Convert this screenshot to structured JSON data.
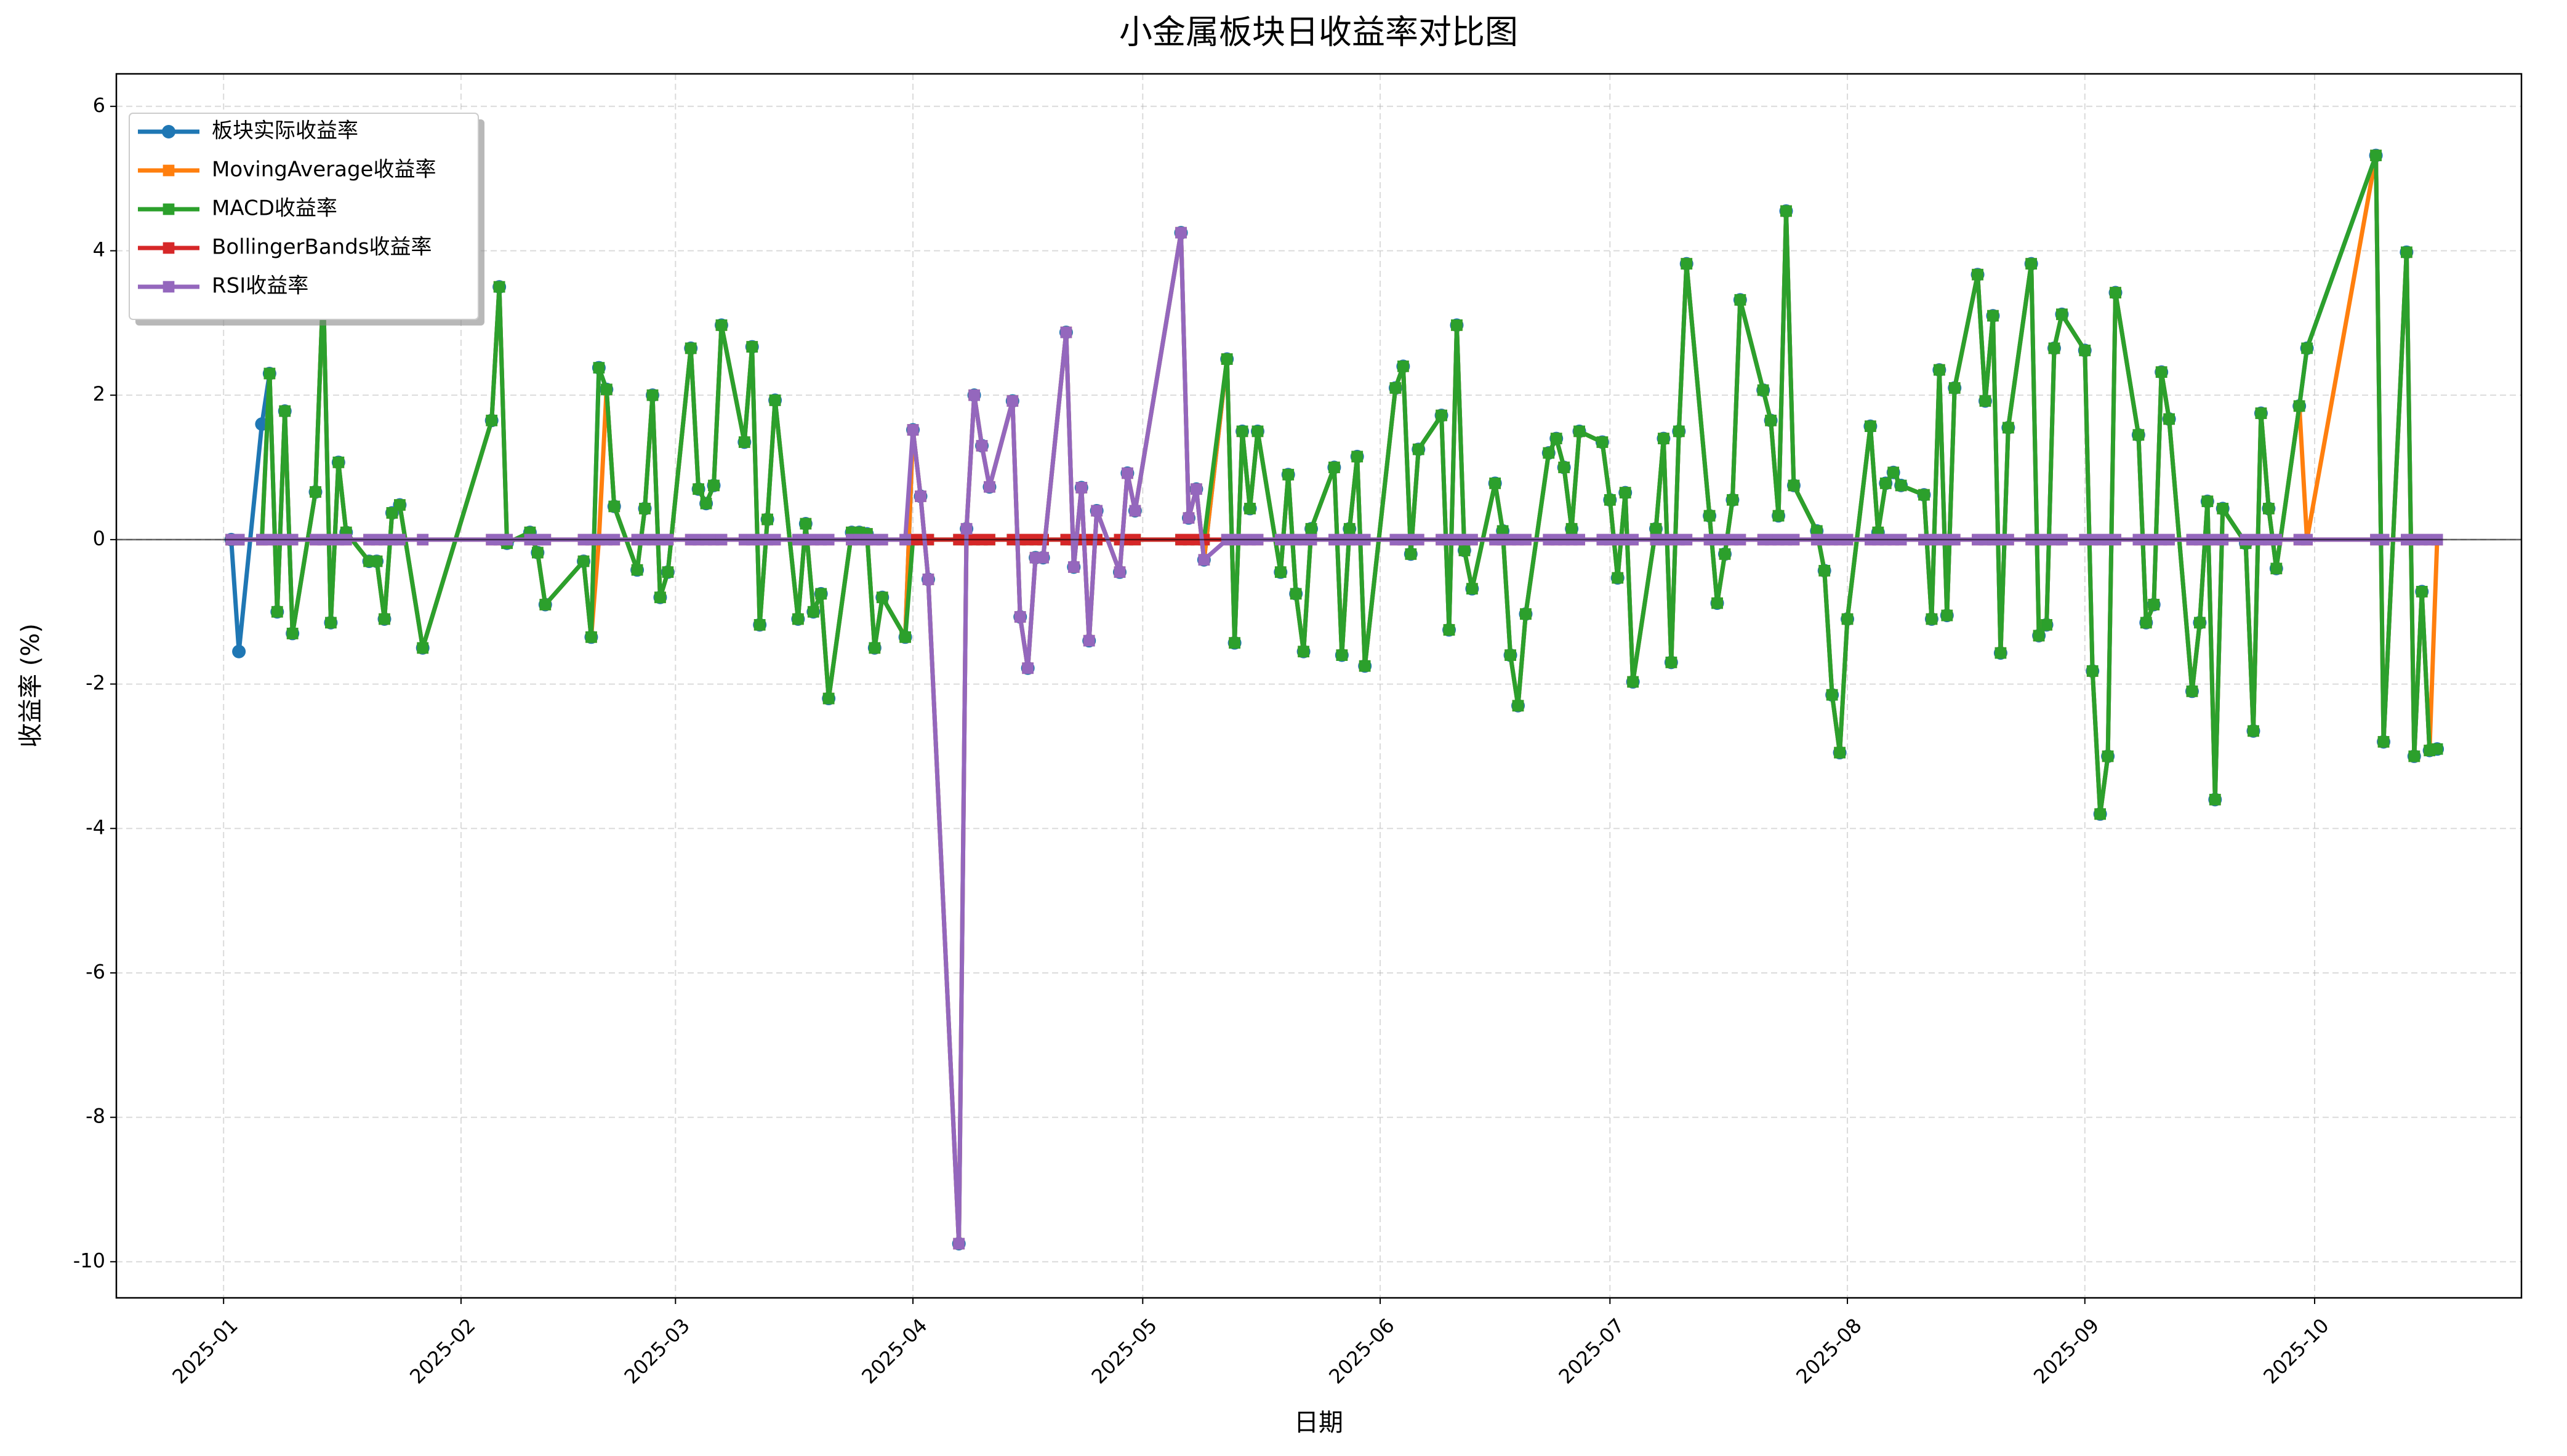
{
  "chart_data": {
    "type": "line",
    "title": "小金属板块日收益率对比图",
    "xlabel": "日期",
    "ylabel": "收益率 (%)",
    "legend": "upper left",
    "grid": true,
    "xlim": [
      "2024-12-18",
      "2025-10-28"
    ],
    "ylim": [
      -10.5,
      6.45
    ],
    "yticks": [
      -10,
      -8,
      -6,
      -4,
      -2,
      0,
      2,
      4,
      6
    ],
    "xticks": [
      {
        "value": "2025-01-01",
        "label": "2025-01"
      },
      {
        "value": "2025-02-01",
        "label": "2025-02"
      },
      {
        "value": "2025-03-01",
        "label": "2025-03"
      },
      {
        "value": "2025-04-01",
        "label": "2025-04"
      },
      {
        "value": "2025-05-01",
        "label": "2025-05"
      },
      {
        "value": "2025-06-01",
        "label": "2025-06"
      },
      {
        "value": "2025-07-01",
        "label": "2025-07"
      },
      {
        "value": "2025-08-01",
        "label": "2025-08"
      },
      {
        "value": "2025-09-01",
        "label": "2025-09"
      },
      {
        "value": "2025-10-01",
        "label": "2025-10"
      }
    ],
    "x": [
      "2025-01-02",
      "2025-01-03",
      "2025-01-06",
      "2025-01-07",
      "2025-01-08",
      "2025-01-09",
      "2025-01-10",
      "2025-01-13",
      "2025-01-14",
      "2025-01-15",
      "2025-01-16",
      "2025-01-17",
      "2025-01-20",
      "2025-01-21",
      "2025-01-22",
      "2025-01-23",
      "2025-01-24",
      "2025-01-27",
      "2025-02-05",
      "2025-02-06",
      "2025-02-07",
      "2025-02-10",
      "2025-02-11",
      "2025-02-12",
      "2025-02-17",
      "2025-02-18",
      "2025-02-19",
      "2025-02-20",
      "2025-02-21",
      "2025-02-24",
      "2025-02-25",
      "2025-02-26",
      "2025-02-27",
      "2025-02-28",
      "2025-03-03",
      "2025-03-04",
      "2025-03-05",
      "2025-03-06",
      "2025-03-07",
      "2025-03-10",
      "2025-03-11",
      "2025-03-12",
      "2025-03-13",
      "2025-03-14",
      "2025-03-17",
      "2025-03-18",
      "2025-03-19",
      "2025-03-20",
      "2025-03-21",
      "2025-03-24",
      "2025-03-25",
      "2025-03-26",
      "2025-03-27",
      "2025-03-28",
      "2025-03-31",
      "2025-04-01",
      "2025-04-02",
      "2025-04-03",
      "2025-04-07",
      "2025-04-08",
      "2025-04-09",
      "2025-04-10",
      "2025-04-11",
      "2025-04-14",
      "2025-04-15",
      "2025-04-16",
      "2025-04-17",
      "2025-04-18",
      "2025-04-21",
      "2025-04-22",
      "2025-04-23",
      "2025-04-24",
      "2025-04-25",
      "2025-04-28",
      "2025-04-29",
      "2025-04-30",
      "2025-05-06",
      "2025-05-07",
      "2025-05-08",
      "2025-05-09",
      "2025-05-12",
      "2025-05-13",
      "2025-05-14",
      "2025-05-15",
      "2025-05-16",
      "2025-05-19",
      "2025-05-20",
      "2025-05-21",
      "2025-05-22",
      "2025-05-23",
      "2025-05-26",
      "2025-05-27",
      "2025-05-28",
      "2025-05-29",
      "2025-05-30",
      "2025-06-03",
      "2025-06-04",
      "2025-06-05",
      "2025-06-06",
      "2025-06-09",
      "2025-06-10",
      "2025-06-11",
      "2025-06-12",
      "2025-06-13",
      "2025-06-16",
      "2025-06-17",
      "2025-06-18",
      "2025-06-19",
      "2025-06-20",
      "2025-06-23",
      "2025-06-24",
      "2025-06-25",
      "2025-06-26",
      "2025-06-27",
      "2025-06-30",
      "2025-07-01",
      "2025-07-02",
      "2025-07-03",
      "2025-07-04",
      "2025-07-07",
      "2025-07-08",
      "2025-07-09",
      "2025-07-10",
      "2025-07-11",
      "2025-07-14",
      "2025-07-15",
      "2025-07-16",
      "2025-07-17",
      "2025-07-18",
      "2025-07-21",
      "2025-07-22",
      "2025-07-23",
      "2025-07-24",
      "2025-07-25",
      "2025-07-28",
      "2025-07-29",
      "2025-07-30",
      "2025-07-31",
      "2025-08-01",
      "2025-08-04",
      "2025-08-05",
      "2025-08-06",
      "2025-08-07",
      "2025-08-08",
      "2025-08-11",
      "2025-08-12",
      "2025-08-13",
      "2025-08-14",
      "2025-08-15",
      "2025-08-18",
      "2025-08-19",
      "2025-08-20",
      "2025-08-21",
      "2025-08-22",
      "2025-08-25",
      "2025-08-26",
      "2025-08-27",
      "2025-08-28",
      "2025-08-29",
      "2025-09-01",
      "2025-09-02",
      "2025-09-03",
      "2025-09-04",
      "2025-09-05",
      "2025-09-08",
      "2025-09-09",
      "2025-09-10",
      "2025-09-11",
      "2025-09-12",
      "2025-09-15",
      "2025-09-16",
      "2025-09-17",
      "2025-09-18",
      "2025-09-19",
      "2025-09-22",
      "2025-09-23",
      "2025-09-24",
      "2025-09-25",
      "2025-09-26",
      "2025-09-29",
      "2025-09-30",
      "2025-10-09",
      "2025-10-10",
      "2025-10-13",
      "2025-10-14",
      "2025-10-15",
      "2025-10-16",
      "2025-10-17"
    ],
    "series": [
      {
        "name": "板块实际收益率",
        "color": "#1f77b4",
        "marker": "circle",
        "values": [
          0,
          -1.55,
          1.6,
          2.3,
          -1.0,
          1.78,
          -1.3,
          0.66,
          3.5,
          -1.15,
          1.07,
          0.1,
          -0.3,
          -0.3,
          -1.1,
          0.37,
          0.48,
          -1.5,
          1.65,
          3.5,
          -0.05,
          0.1,
          -0.18,
          -0.9,
          -0.3,
          -1.35,
          2.38,
          2.08,
          0.46,
          -0.42,
          0.43,
          2.0,
          -0.8,
          -0.45,
          2.65,
          0.7,
          0.5,
          0.75,
          2.97,
          1.35,
          2.67,
          -1.18,
          0.28,
          1.93,
          -1.1,
          0.22,
          -1.0,
          -0.75,
          -2.2,
          0.1,
          0.1,
          0.08,
          -1.5,
          -0.8,
          -1.35,
          1.52,
          0.6,
          -0.55,
          -9.75,
          0.15,
          2.0,
          1.3,
          0.73,
          1.92,
          -1.07,
          -1.78,
          -0.25,
          -0.25,
          2.87,
          -0.38,
          0.72,
          -1.4,
          0.4,
          -0.45,
          0.92,
          0.4,
          4.25,
          0.3,
          0.7,
          -0.28,
          2.5,
          -1.43,
          1.5,
          0.43,
          1.5,
          -0.45,
          0.9,
          -0.75,
          -1.55,
          0.15,
          1.0,
          -1.6,
          0.15,
          1.15,
          -1.75,
          2.1,
          2.4,
          -0.2,
          1.25,
          1.72,
          -1.25,
          2.97,
          -0.15,
          -0.68,
          0.78,
          0.12,
          -1.6,
          -2.3,
          -1.03,
          1.2,
          1.4,
          1.0,
          0.15,
          1.5,
          1.35,
          0.55,
          -0.53,
          0.65,
          -1.97,
          0.15,
          1.4,
          -1.7,
          1.5,
          3.82,
          0.33,
          -0.88,
          -0.2,
          0.55,
          3.32,
          2.07,
          1.65,
          0.33,
          4.55,
          0.75,
          0.12,
          -0.43,
          -2.15,
          -2.95,
          -1.1,
          1.57,
          0.1,
          0.78,
          0.93,
          0.75,
          0.62,
          -1.1,
          2.35,
          -1.05,
          2.1,
          3.67,
          1.92,
          3.1,
          -1.57,
          1.55,
          3.82,
          -1.33,
          -1.18,
          2.65,
          3.12,
          2.62,
          -1.82,
          -3.8,
          -3.0,
          3.42,
          1.45,
          -1.15,
          -0.9,
          2.32,
          1.67,
          -2.1,
          -1.15,
          0.53,
          -3.6,
          0.43,
          -0.05,
          -2.65,
          1.75,
          0.43,
          -0.4,
          1.85,
          2.65,
          5.32,
          -2.8,
          3.98,
          -3.0,
          -0.72,
          -2.92,
          -2.9
        ]
      },
      {
        "name": "MovingAverage收益率",
        "color": "#ff7f0e",
        "marker": "square",
        "values": [
          0,
          0,
          0,
          2.3,
          -1.0,
          1.78,
          -1.3,
          0.66,
          3.5,
          -1.15,
          1.07,
          0.1,
          -0.3,
          -0.3,
          -1.1,
          0.37,
          0.48,
          -1.5,
          1.65,
          3.5,
          -0.05,
          0.1,
          -0.18,
          -0.9,
          -0.3,
          -1.35,
          0,
          2.08,
          0.46,
          -0.42,
          0.43,
          2.0,
          -0.8,
          -0.45,
          2.65,
          0.7,
          0.5,
          0.75,
          2.97,
          1.35,
          2.67,
          -1.18,
          0.28,
          1.93,
          -1.1,
          0.22,
          -1.0,
          -0.75,
          -2.2,
          0.1,
          0.1,
          0.08,
          -1.5,
          -0.8,
          -1.35,
          1.52,
          0.6,
          -0.55,
          -9.75,
          0.15,
          2.0,
          1.3,
          0.73,
          1.92,
          -1.07,
          -1.78,
          -0.25,
          -0.25,
          2.87,
          -0.38,
          0.72,
          -1.4,
          0.4,
          -0.45,
          0.92,
          0.4,
          4.25,
          0.3,
          0.7,
          -0.28,
          2.5,
          -1.43,
          1.5,
          0.43,
          1.5,
          -0.45,
          0.9,
          -0.75,
          -1.55,
          0.15,
          1.0,
          -1.6,
          0.15,
          1.15,
          -1.75,
          2.1,
          2.4,
          -0.2,
          1.25,
          1.72,
          -1.25,
          2.97,
          -0.15,
          -0.68,
          0.78,
          0.12,
          -1.6,
          -2.3,
          -1.03,
          1.2,
          1.4,
          1.0,
          0.15,
          1.5,
          1.35,
          0.55,
          -0.53,
          0.65,
          -1.97,
          0.15,
          1.4,
          -1.7,
          1.5,
          3.82,
          0.33,
          -0.88,
          -0.2,
          0.55,
          3.32,
          2.07,
          1.65,
          0.33,
          4.55,
          0.75,
          0.12,
          -0.43,
          -2.15,
          -2.95,
          -1.1,
          1.57,
          0.1,
          0.78,
          0.93,
          0.75,
          0.62,
          -1.1,
          2.35,
          -1.05,
          2.1,
          3.67,
          1.92,
          3.1,
          -1.57,
          1.55,
          3.82,
          -1.33,
          -1.18,
          2.65,
          3.12,
          2.62,
          -1.82,
          -3.8,
          -3.0,
          3.42,
          1.45,
          -1.15,
          -0.9,
          2.32,
          1.67,
          -2.1,
          -1.15,
          0.53,
          -3.6,
          0.43,
          -0.05,
          -2.65,
          1.75,
          0.43,
          -0.4,
          1.85,
          0,
          5.32,
          -2.8,
          3.98,
          -3.0,
          -0.72,
          -2.92,
          0
        ]
      },
      {
        "name": "MACD收益率",
        "color": "#2ca02c",
        "marker": "square",
        "values": [
          0,
          0,
          0,
          2.3,
          -1.0,
          1.78,
          -1.3,
          0.66,
          3.5,
          -1.15,
          1.07,
          0.1,
          -0.3,
          -0.3,
          -1.1,
          0.37,
          0.48,
          -1.5,
          1.65,
          3.5,
          -0.05,
          0.1,
          -0.18,
          -0.9,
          -0.3,
          -1.35,
          2.38,
          2.08,
          0.46,
          -0.42,
          0.43,
          2.0,
          -0.8,
          -0.45,
          2.65,
          0.7,
          0.5,
          0.75,
          2.97,
          1.35,
          2.67,
          -1.18,
          0.28,
          1.93,
          -1.1,
          0.22,
          -1.0,
          -0.75,
          -2.2,
          0.1,
          0.1,
          0.08,
          -1.5,
          -0.8,
          -1.35,
          0,
          0,
          0,
          0,
          0,
          0,
          0,
          0,
          0,
          0,
          0,
          0,
          0,
          0,
          0,
          0,
          0,
          0,
          0,
          0,
          0,
          0,
          0,
          0,
          0,
          2.5,
          -1.43,
          1.5,
          0.43,
          1.5,
          -0.45,
          0.9,
          -0.75,
          -1.55,
          0.15,
          1.0,
          -1.6,
          0.15,
          1.15,
          -1.75,
          2.1,
          2.4,
          -0.2,
          1.25,
          1.72,
          -1.25,
          2.97,
          -0.15,
          -0.68,
          0.78,
          0.12,
          -1.6,
          -2.3,
          -1.03,
          1.2,
          1.4,
          1.0,
          0.15,
          1.5,
          1.35,
          0.55,
          -0.53,
          0.65,
          -1.97,
          0.15,
          1.4,
          -1.7,
          1.5,
          3.82,
          0.33,
          -0.88,
          -0.2,
          0.55,
          3.32,
          2.07,
          1.65,
          0.33,
          4.55,
          0.75,
          0.12,
          -0.43,
          -2.15,
          -2.95,
          -1.1,
          1.57,
          0.1,
          0.78,
          0.93,
          0.75,
          0.62,
          -1.1,
          2.35,
          -1.05,
          2.1,
          3.67,
          1.92,
          3.1,
          -1.57,
          1.55,
          3.82,
          -1.33,
          -1.18,
          2.65,
          3.12,
          2.62,
          -1.82,
          -3.8,
          -3.0,
          3.42,
          1.45,
          -1.15,
          -0.9,
          2.32,
          1.67,
          -2.1,
          -1.15,
          0.53,
          -3.6,
          0.43,
          -0.05,
          -2.65,
          1.75,
          0.43,
          -0.4,
          1.85,
          2.65,
          5.32,
          -2.8,
          3.98,
          -3.0,
          -0.72,
          -2.92,
          -2.9
        ]
      },
      {
        "name": "BollingerBands收益率",
        "color": "#d62728",
        "marker": "square",
        "values": [
          0,
          0,
          0,
          0,
          0,
          0,
          0,
          0,
          0,
          0,
          0,
          0,
          0,
          0,
          0,
          0,
          0,
          0,
          0,
          0,
          0,
          0,
          0,
          0,
          0,
          0,
          0,
          0,
          0,
          0,
          0,
          0,
          0,
          0,
          0,
          0,
          0,
          0,
          0,
          0,
          0,
          0,
          0,
          0,
          0,
          0,
          0,
          0,
          0,
          0,
          0,
          0,
          0,
          0,
          0,
          0,
          0,
          0,
          0,
          0,
          0,
          0,
          0,
          0,
          0,
          0,
          0,
          0,
          0,
          0,
          0,
          0,
          0,
          0,
          0,
          0,
          0,
          0,
          0,
          0,
          0,
          0,
          0,
          0,
          0,
          0,
          0,
          0,
          0,
          0,
          0,
          0,
          0,
          0,
          0,
          0,
          0,
          0,
          0,
          0,
          0,
          0,
          0,
          0,
          0,
          0,
          0,
          0,
          0,
          0,
          0,
          0,
          0,
          0,
          0,
          0,
          0,
          0,
          0,
          0,
          0,
          0,
          0,
          0,
          0,
          0,
          0,
          0,
          0,
          0,
          0,
          0,
          0,
          0,
          0,
          0,
          0,
          0,
          0,
          0,
          0,
          0,
          0,
          0,
          0,
          0,
          0,
          0,
          0,
          0,
          0,
          0,
          0,
          0,
          0,
          0,
          0,
          0,
          0,
          0,
          0,
          0,
          0,
          0,
          0,
          0,
          0,
          0,
          0,
          0,
          0,
          0,
          0,
          0,
          0,
          0,
          0,
          0,
          0,
          0,
          0,
          0,
          0,
          0,
          0,
          0,
          0,
          0
        ]
      },
      {
        "name": "RSI收益率",
        "color": "#9467bd",
        "marker": "square",
        "values": [
          0,
          0,
          0,
          0,
          0,
          0,
          0,
          0,
          0,
          0,
          0,
          0,
          0,
          0,
          0,
          0,
          0,
          0,
          0,
          0,
          0,
          0,
          0,
          0,
          0,
          0,
          0,
          0,
          0,
          0,
          0,
          0,
          0,
          0,
          0,
          0,
          0,
          0,
          0,
          0,
          0,
          0,
          0,
          0,
          0,
          0,
          0,
          0,
          0,
          0,
          0,
          0,
          0,
          0,
          0,
          1.52,
          0.6,
          -0.55,
          -9.75,
          0.15,
          2.0,
          1.3,
          0.73,
          1.92,
          -1.07,
          -1.78,
          -0.25,
          -0.25,
          2.87,
          -0.38,
          0.72,
          -1.4,
          0.4,
          -0.45,
          0.92,
          0.4,
          4.25,
          0.3,
          0.7,
          -0.28,
          0,
          0,
          0,
          0,
          0,
          0,
          0,
          0,
          0,
          0,
          0,
          0,
          0,
          0,
          0,
          0,
          0,
          0,
          0,
          0,
          0,
          0,
          0,
          0,
          0,
          0,
          0,
          0,
          0,
          0,
          0,
          0,
          0,
          0,
          0,
          0,
          0,
          0,
          0,
          0,
          0,
          0,
          0,
          0,
          0,
          0,
          0,
          0,
          0,
          0,
          0,
          0,
          0,
          0,
          0,
          0,
          0,
          0,
          0,
          0,
          0,
          0,
          0,
          0,
          0,
          0,
          0,
          0,
          0,
          0,
          0,
          0,
          0,
          0,
          0,
          0,
          0,
          0,
          0,
          0,
          0,
          0,
          0,
          0,
          0,
          0,
          0,
          0,
          0,
          0,
          0,
          0,
          0,
          0,
          0,
          0,
          0,
          0,
          0,
          0,
          0,
          0,
          0,
          0,
          0,
          0,
          0,
          0
        ]
      }
    ]
  }
}
